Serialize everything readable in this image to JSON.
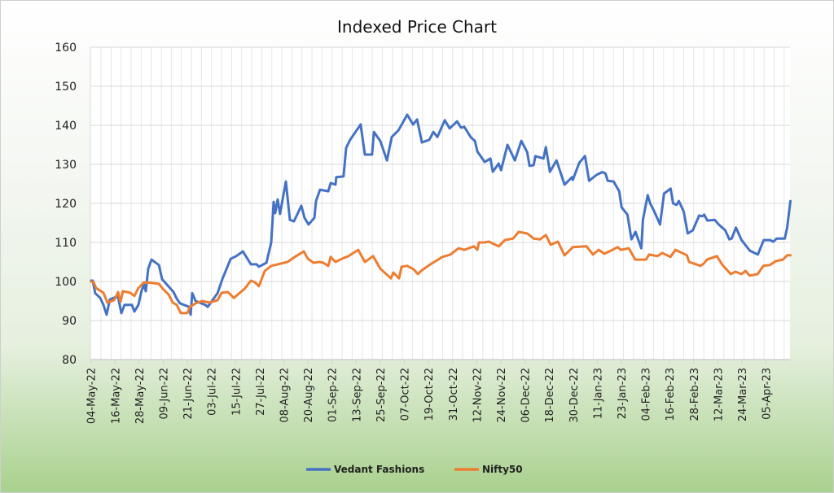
{
  "chart_data": {
    "type": "line",
    "title": "Indexed Price Chart",
    "xlabel": "",
    "ylabel": "",
    "ylim": [
      80,
      160
    ],
    "yticks": [
      80,
      90,
      100,
      110,
      120,
      130,
      140,
      150,
      160
    ],
    "x_unit": "days since 04-May-22",
    "xlim": [
      0,
      348
    ],
    "x_tick_labels": [
      "04-May-22",
      "16-May-22",
      "28-May-22",
      "09-Jun-22",
      "21-Jun-22",
      "03-Jul-22",
      "15-Jul-22",
      "27-Jul-22",
      "08-Aug-22",
      "20-Aug-22",
      "01-Sep-22",
      "13-Sep-22",
      "25-Sep-22",
      "07-Oct-22",
      "19-Oct-22",
      "31-Oct-22",
      "12-Nov-22",
      "24-Nov-22",
      "06-Dec-22",
      "18-Dec-22",
      "30-Dec-22",
      "11-Jan-23",
      "23-Jan-23",
      "04-Feb-23",
      "16-Feb-23",
      "28-Feb-23",
      "12-Mar-23",
      "24-Mar-23",
      "05-Apr-23"
    ],
    "x_tick_step_days": 12,
    "grid": true,
    "legend_position": "bottom",
    "series": [
      {
        "name": "Vedant Fashions",
        "color": "#4472c4",
        "points": [
          [
            0,
            100.2
          ],
          [
            0.9,
            100.2
          ],
          [
            2.1,
            97
          ],
          [
            4.6,
            95.8
          ],
          [
            6.2,
            94
          ],
          [
            7.8,
            91.5
          ],
          [
            9.4,
            95.4
          ],
          [
            12.3,
            96
          ],
          [
            13.5,
            96
          ],
          [
            15.1,
            91.9
          ],
          [
            16.7,
            94
          ],
          [
            20.4,
            94
          ],
          [
            21.6,
            92.3
          ],
          [
            23.6,
            94
          ],
          [
            25.2,
            97.7
          ],
          [
            26.4,
            99.2
          ],
          [
            27.3,
            97.5
          ],
          [
            28.5,
            103.3
          ],
          [
            30.1,
            105.6
          ],
          [
            33.8,
            104.2
          ],
          [
            35.4,
            100.6
          ],
          [
            41.1,
            97.3
          ],
          [
            42.7,
            95.6
          ],
          [
            44.3,
            94.4
          ],
          [
            48.8,
            93.5
          ],
          [
            49.6,
            91.5
          ],
          [
            50.4,
            97
          ],
          [
            52.1,
            95
          ],
          [
            56.9,
            94
          ],
          [
            58.1,
            93.5
          ],
          [
            63,
            97
          ],
          [
            65.4,
            100.6
          ],
          [
            69.5,
            105.8
          ],
          [
            72.3,
            106.5
          ],
          [
            75.6,
            107.7
          ],
          [
            79.6,
            104.4
          ],
          [
            82.4,
            104.4
          ],
          [
            83.6,
            103.8
          ],
          [
            87.3,
            104.8
          ],
          [
            89.7,
            110
          ],
          [
            90.9,
            120.4
          ],
          [
            91.7,
            117.5
          ],
          [
            92.9,
            121
          ],
          [
            94.1,
            117.3
          ],
          [
            97,
            125.6
          ],
          [
            99,
            115.8
          ],
          [
            101,
            115.4
          ],
          [
            104.7,
            119.4
          ],
          [
            106.3,
            116.3
          ],
          [
            108.3,
            114.6
          ],
          [
            111.2,
            116.3
          ],
          [
            112,
            120.6
          ],
          [
            114,
            123.5
          ],
          [
            118.1,
            123.1
          ],
          [
            119.3,
            125.2
          ],
          [
            121.7,
            124.8
          ],
          [
            122.1,
            126.7
          ],
          [
            125.7,
            126.9
          ],
          [
            127,
            134.2
          ],
          [
            129,
            136.3
          ],
          [
            134.2,
            140.2
          ],
          [
            136.3,
            132.5
          ],
          [
            139.9,
            132.5
          ],
          [
            140.8,
            138.3
          ],
          [
            144,
            136
          ],
          [
            147.3,
            131
          ],
          [
            149.7,
            137
          ],
          [
            153,
            138.7
          ],
          [
            157.4,
            142.7
          ],
          [
            160.3,
            140.2
          ],
          [
            162.3,
            141.5
          ],
          [
            164.7,
            135.6
          ],
          [
            168.4,
            136.3
          ],
          [
            170.4,
            138.3
          ],
          [
            172.4,
            137
          ],
          [
            176.1,
            141.3
          ],
          [
            178.5,
            139.2
          ],
          [
            182.2,
            141
          ],
          [
            184.2,
            139.4
          ],
          [
            185.8,
            139.6
          ],
          [
            189.1,
            136.9
          ],
          [
            191.1,
            136
          ],
          [
            192.3,
            133.3
          ],
          [
            196,
            130.6
          ],
          [
            198.8,
            131.5
          ],
          [
            200,
            128.1
          ],
          [
            202.9,
            130.2
          ],
          [
            204.1,
            128.5
          ],
          [
            207.3,
            135
          ],
          [
            211,
            131
          ],
          [
            214.2,
            136
          ],
          [
            217.1,
            133.1
          ],
          [
            218.3,
            129.6
          ],
          [
            220.3,
            129.8
          ],
          [
            221.2,
            132.1
          ],
          [
            225.2,
            131.5
          ],
          [
            226.4,
            134.4
          ],
          [
            228.4,
            128.1
          ],
          [
            231.7,
            131
          ],
          [
            235.7,
            124.8
          ],
          [
            239.4,
            126.7
          ],
          [
            239.8,
            126
          ],
          [
            243,
            130.4
          ],
          [
            245.9,
            132.1
          ],
          [
            247.9,
            125.8
          ],
          [
            251.6,
            127.3
          ],
          [
            254.4,
            128
          ],
          [
            256,
            127.7
          ],
          [
            257.2,
            125.8
          ],
          [
            260.1,
            125.6
          ],
          [
            262.9,
            123.1
          ],
          [
            264.1,
            119
          ],
          [
            267,
            117.1
          ],
          [
            269,
            110.8
          ],
          [
            271,
            112.7
          ],
          [
            273.9,
            108.5
          ],
          [
            274.7,
            115.8
          ],
          [
            277.1,
            122.1
          ],
          [
            278.3,
            120
          ],
          [
            280.4,
            117.9
          ],
          [
            283.2,
            114.6
          ],
          [
            285.2,
            122.5
          ],
          [
            288.5,
            123.8
          ],
          [
            289.7,
            120
          ],
          [
            291.4,
            119.6
          ],
          [
            292.6,
            120.6
          ],
          [
            295,
            117.9
          ],
          [
            297,
            112.3
          ],
          [
            299.5,
            113.1
          ],
          [
            302.7,
            116.9
          ],
          [
            304.3,
            116.7
          ],
          [
            305.2,
            117.1
          ],
          [
            306.8,
            115.6
          ],
          [
            310.4,
            115.8
          ],
          [
            312.4,
            114.6
          ],
          [
            315.7,
            113.1
          ],
          [
            317.7,
            110.8
          ],
          [
            318.9,
            111
          ],
          [
            321,
            113.8
          ],
          [
            323.8,
            110.6
          ],
          [
            327.9,
            107.9
          ],
          [
            331.9,
            106.9
          ],
          [
            334.8,
            110.6
          ],
          [
            338,
            110.6
          ],
          [
            339.6,
            110.2
          ],
          [
            341.3,
            111
          ],
          [
            345.3,
            111
          ],
          [
            346.5,
            113.8
          ],
          [
            348.1,
            120.6
          ]
        ]
      },
      {
        "name": "Nifty50",
        "color": "#ed7d31",
        "points": [
          [
            0,
            100
          ],
          [
            1.3,
            99.8
          ],
          [
            2.6,
            98.3
          ],
          [
            6.2,
            97.1
          ],
          [
            8.2,
            94.6
          ],
          [
            11.5,
            95.2
          ],
          [
            13.5,
            97.3
          ],
          [
            14.7,
            94.8
          ],
          [
            15.9,
            97.5
          ],
          [
            19.6,
            97.1
          ],
          [
            21.6,
            96.3
          ],
          [
            23.6,
            98.3
          ],
          [
            26.4,
            99.8
          ],
          [
            30.5,
            99.6
          ],
          [
            33.8,
            99.4
          ],
          [
            35.8,
            98.1
          ],
          [
            38.6,
            96.7
          ],
          [
            40.7,
            94.6
          ],
          [
            42.7,
            94
          ],
          [
            44.7,
            91.9
          ],
          [
            48,
            91.9
          ],
          [
            49.2,
            93.5
          ],
          [
            52.1,
            94.4
          ],
          [
            55.3,
            95
          ],
          [
            59,
            94.6
          ],
          [
            63,
            95.2
          ],
          [
            65,
            97.1
          ],
          [
            68.2,
            97.3
          ],
          [
            71.1,
            95.8
          ],
          [
            76.4,
            98.1
          ],
          [
            79.6,
            100.2
          ],
          [
            81.6,
            99.8
          ],
          [
            83.6,
            98.8
          ],
          [
            86.5,
            102.7
          ],
          [
            89.7,
            104
          ],
          [
            94.6,
            104.6
          ],
          [
            97.8,
            105
          ],
          [
            101.5,
            106.3
          ],
          [
            105.9,
            107.7
          ],
          [
            108,
            105.8
          ],
          [
            110.8,
            104.8
          ],
          [
            113.6,
            105
          ],
          [
            115.6,
            104.8
          ],
          [
            118.1,
            104
          ],
          [
            119.3,
            106.3
          ],
          [
            121.7,
            105
          ],
          [
            125.7,
            106
          ],
          [
            128.2,
            106.5
          ],
          [
            133,
            108.1
          ],
          [
            136.3,
            105
          ],
          [
            140.4,
            106.5
          ],
          [
            144,
            103.3
          ],
          [
            149.3,
            100.8
          ],
          [
            150.5,
            102.3
          ],
          [
            153.3,
            100.8
          ],
          [
            154.6,
            103.8
          ],
          [
            157.4,
            104
          ],
          [
            160.6,
            103.1
          ],
          [
            162.7,
            101.9
          ],
          [
            164.3,
            102.7
          ],
          [
            168.4,
            104.2
          ],
          [
            170.8,
            105
          ],
          [
            174.9,
            106.3
          ],
          [
            178.9,
            106.9
          ],
          [
            182.9,
            108.5
          ],
          [
            185.8,
            108.1
          ],
          [
            190.6,
            109
          ],
          [
            192.3,
            108.1
          ],
          [
            193.1,
            110
          ],
          [
            196,
            110
          ],
          [
            198,
            110.2
          ],
          [
            202.9,
            109
          ],
          [
            206,
            110.6
          ],
          [
            210.1,
            111
          ],
          [
            212.9,
            112.7
          ],
          [
            217.1,
            112.3
          ],
          [
            220.3,
            111
          ],
          [
            223.5,
            110.8
          ],
          [
            226.4,
            111.9
          ],
          [
            228.8,
            109.4
          ],
          [
            232.4,
            110.2
          ],
          [
            235.7,
            106.7
          ],
          [
            239.8,
            108.8
          ],
          [
            246.6,
            109
          ],
          [
            249.9,
            106.9
          ],
          [
            252.7,
            108.1
          ],
          [
            255.5,
            107.1
          ],
          [
            258,
            107.7
          ],
          [
            262.1,
            108.8
          ],
          [
            263.7,
            108.1
          ],
          [
            267.7,
            108.5
          ],
          [
            270.9,
            105.6
          ],
          [
            276.2,
            105.6
          ],
          [
            277.8,
            106.9
          ],
          [
            281.9,
            106.5
          ],
          [
            284.3,
            107.3
          ],
          [
            288.4,
            106.3
          ],
          [
            290.9,
            108.1
          ],
          [
            296.6,
            106.7
          ],
          [
            297.7,
            105
          ],
          [
            303.4,
            104
          ],
          [
            305,
            104.6
          ],
          [
            306.6,
            105.6
          ],
          [
            311.5,
            106.5
          ],
          [
            314.3,
            104.2
          ],
          [
            318.4,
            101.9
          ],
          [
            320.8,
            102.5
          ],
          [
            323.7,
            101.9
          ],
          [
            325.7,
            102.7
          ],
          [
            327.8,
            101.5
          ],
          [
            331.8,
            101.9
          ],
          [
            334.6,
            104
          ],
          [
            337.9,
            104.2
          ],
          [
            340.8,
            105.2
          ],
          [
            344.4,
            105.6
          ],
          [
            346.5,
            106.7
          ],
          [
            348.1,
            106.7
          ]
        ]
      }
    ]
  }
}
